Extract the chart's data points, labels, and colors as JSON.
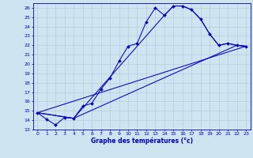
{
  "xlabel": "Graphe des températures (°c)",
  "xlim": [
    -0.5,
    23.5
  ],
  "ylim": [
    13,
    26.5
  ],
  "xticks": [
    0,
    1,
    2,
    3,
    4,
    5,
    6,
    7,
    8,
    9,
    10,
    11,
    12,
    13,
    14,
    15,
    16,
    17,
    18,
    19,
    20,
    21,
    22,
    23
  ],
  "yticks": [
    13,
    14,
    15,
    16,
    17,
    18,
    19,
    20,
    21,
    22,
    23,
    24,
    25,
    26
  ],
  "bg_color": "#cce5f0",
  "line_color": "#0000bb",
  "grid_color": "#b0c8d8",
  "series_main": {
    "x": [
      0,
      1,
      2,
      3,
      4,
      5,
      6,
      7,
      8,
      9,
      10,
      11,
      12,
      13,
      14,
      15,
      16,
      17,
      18,
      19,
      20,
      21,
      22,
      23
    ],
    "y": [
      14.8,
      14.1,
      13.5,
      14.3,
      14.2,
      15.5,
      15.8,
      17.3,
      18.5,
      20.3,
      21.9,
      22.2,
      24.5,
      26.0,
      25.2,
      26.2,
      26.2,
      25.8,
      24.8,
      23.2,
      22.0,
      22.2,
      22.0,
      21.9
    ]
  },
  "series_line2": {
    "x": [
      0,
      4,
      14,
      15,
      16,
      17,
      18,
      19,
      20,
      21,
      22,
      23
    ],
    "y": [
      14.8,
      14.2,
      25.2,
      26.2,
      26.2,
      25.8,
      24.8,
      23.2,
      22.0,
      22.2,
      22.0,
      21.9
    ]
  },
  "series_line3": {
    "x": [
      0,
      23
    ],
    "y": [
      14.8,
      21.9
    ]
  },
  "series_line4": {
    "x": [
      0,
      4,
      22,
      23
    ],
    "y": [
      14.8,
      14.2,
      22.0,
      21.9
    ]
  }
}
